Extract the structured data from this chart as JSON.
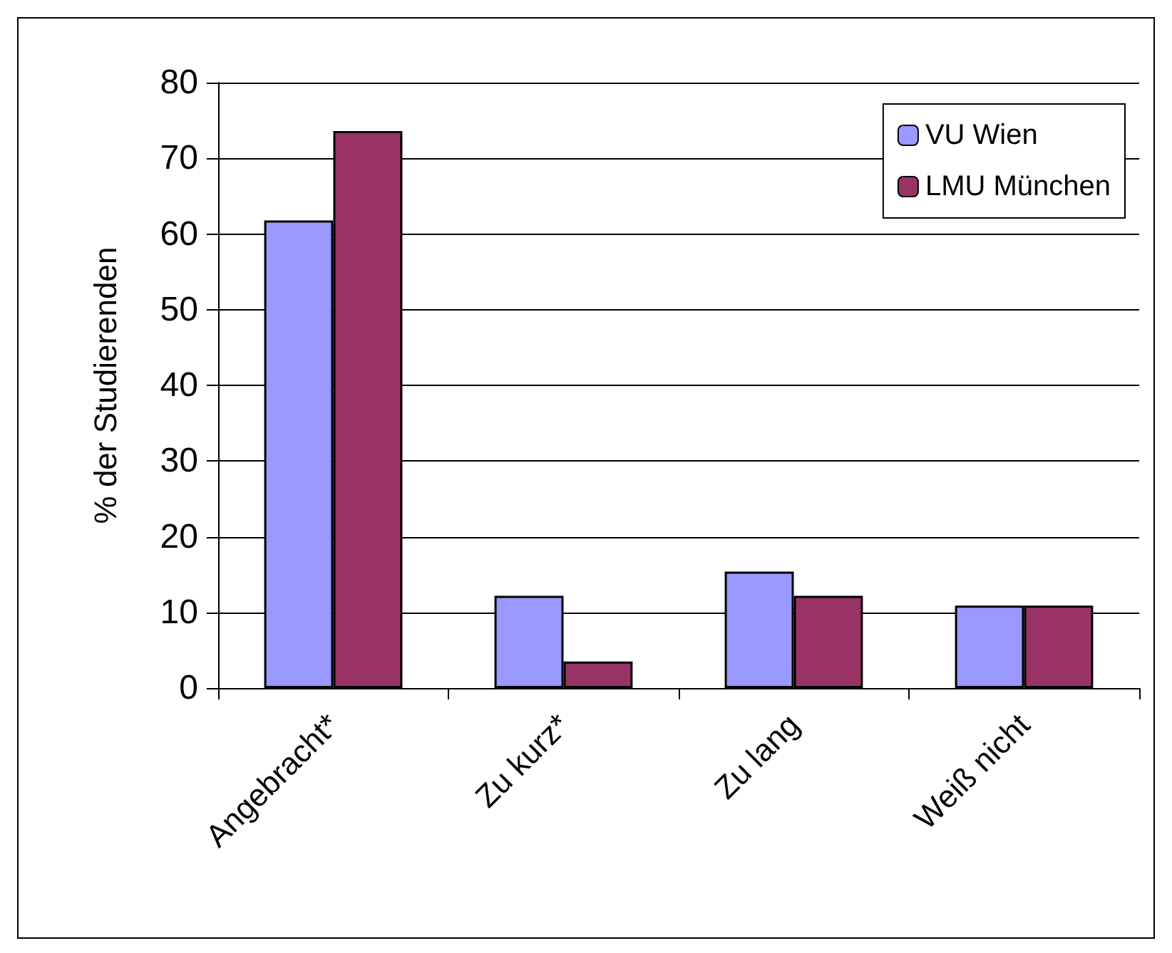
{
  "chart_data": {
    "type": "bar",
    "ylabel": "% der Studierenden",
    "categories": [
      "Angebracht*",
      "Zu kurz*",
      "Zu lang",
      "Weiß nicht"
    ],
    "series": [
      {
        "name": "VU Wien",
        "color": "#9999ff",
        "values": [
          61.8,
          12.2,
          15.4,
          10.9
        ]
      },
      {
        "name": "LMU München",
        "color": "#993366",
        "values": [
          73.6,
          3.5,
          12.2,
          10.9
        ]
      }
    ],
    "ylim": [
      0,
      80
    ],
    "yticks": [
      0,
      10,
      20,
      30,
      40,
      50,
      60,
      70,
      80
    ],
    "grid": "y",
    "legend": "top right"
  }
}
